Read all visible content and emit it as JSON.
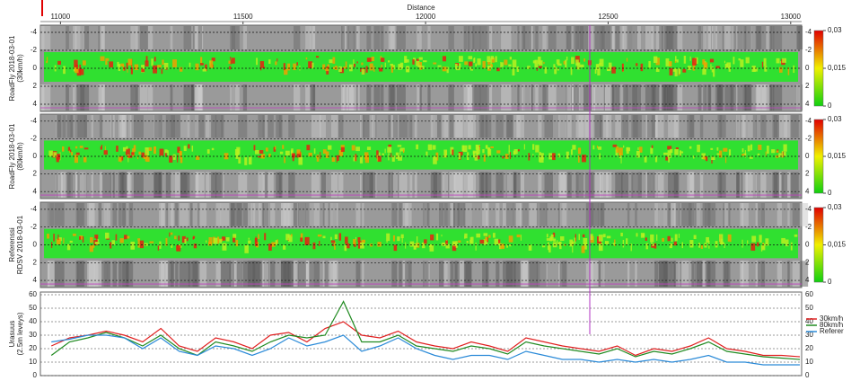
{
  "chart_data": [
    {
      "type": "heatmap",
      "xlabel": "Distance",
      "xlim": [
        10945,
        13030
      ],
      "xticks": [
        11000,
        11500,
        12000,
        12500,
        13000
      ],
      "ylabel": [
        "RoadFly 2018-03-01",
        "(30km/h)"
      ],
      "ylim": [
        -4.8,
        4.8
      ],
      "yticks": [
        -4,
        -2,
        0,
        2,
        4
      ],
      "grid": true,
      "colorbar_lim": [
        0,
        0.03
      ],
      "colorbar_ticks": [
        {
          "value": 0.03,
          "label": "0,03"
        },
        {
          "value": 0.015,
          "label": "0,015"
        },
        0
      ]
    },
    {
      "type": "heatmap",
      "xlim": [
        10945,
        13030
      ],
      "ylabel": [
        "RoadFly 2018-03-01",
        "(80km/h)"
      ],
      "ylim": [
        -4.8,
        4.8
      ],
      "yticks": [
        -4,
        -2,
        0,
        2,
        4
      ],
      "grid": true,
      "colorbar_lim": [
        0,
        0.03
      ],
      "colorbar_ticks": [
        {
          "value": 0.03,
          "label": "0,03"
        },
        {
          "value": 0.015,
          "label": "0,015"
        },
        0
      ]
    },
    {
      "type": "heatmap",
      "xlim": [
        10945,
        13030
      ],
      "ylabel": [
        "Referenssi",
        "RDSV 2018-03-01"
      ],
      "ylim": [
        -4.8,
        4.8
      ],
      "yticks": [
        -4,
        -2,
        0,
        2,
        4
      ],
      "grid": true,
      "colorbar_lim": [
        0,
        0.03
      ],
      "colorbar_ticks": [
        {
          "value": 0.03,
          "label": "0,03"
        },
        {
          "value": 0.015,
          "label": "0,015"
        },
        0
      ]
    },
    {
      "type": "line",
      "xlim": [
        10945,
        13030
      ],
      "ylabel": [
        "Urasuus",
        "(2.5m leveys)"
      ],
      "ylim": [
        0,
        62
      ],
      "yticks": [
        0,
        10,
        20,
        30,
        40,
        50,
        60
      ],
      "grid": true,
      "x": [
        10975,
        11025,
        11075,
        11125,
        11175,
        11225,
        11275,
        11325,
        11375,
        11425,
        11475,
        11525,
        11575,
        11625,
        11675,
        11725,
        11775,
        11825,
        11875,
        11925,
        11975,
        12025,
        12075,
        12125,
        12175,
        12225,
        12275,
        12325,
        12375,
        12425,
        12475,
        12525,
        12575,
        12625,
        12675,
        12725,
        12775,
        12825,
        12875,
        12925,
        12975,
        13025
      ],
      "series": [
        {
          "name": "30km/h",
          "color": "#e02020",
          "values": [
            22,
            28,
            30,
            33,
            30,
            25,
            35,
            22,
            18,
            28,
            25,
            20,
            30,
            32,
            25,
            35,
            40,
            30,
            28,
            33,
            25,
            22,
            20,
            25,
            22,
            18,
            28,
            25,
            22,
            20,
            18,
            22,
            15,
            20,
            18,
            22,
            28,
            20,
            18,
            15,
            15,
            14
          ]
        },
        {
          "name": "80km/h",
          "color": "#208a20",
          "values": [
            15,
            25,
            28,
            32,
            28,
            22,
            30,
            20,
            15,
            25,
            22,
            18,
            25,
            30,
            28,
            30,
            55,
            25,
            25,
            30,
            22,
            20,
            18,
            22,
            20,
            16,
            25,
            22,
            20,
            18,
            16,
            20,
            14,
            18,
            16,
            20,
            25,
            18,
            16,
            14,
            13,
            12
          ]
        },
        {
          "name": "Referer",
          "color": "#2a8ad8",
          "values": [
            25,
            27,
            30,
            30,
            28,
            20,
            28,
            18,
            15,
            22,
            20,
            15,
            20,
            28,
            22,
            25,
            30,
            18,
            22,
            28,
            20,
            15,
            12,
            15,
            15,
            12,
            18,
            15,
            12,
            12,
            10,
            12,
            10,
            12,
            10,
            12,
            15,
            10,
            10,
            8,
            8,
            8
          ]
        }
      ]
    }
  ]
}
